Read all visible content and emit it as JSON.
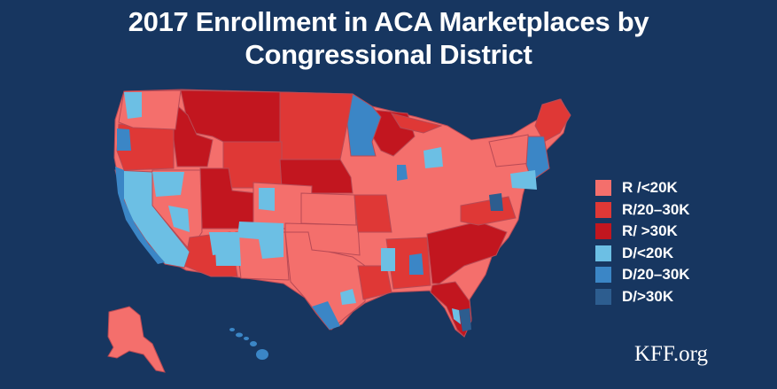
{
  "title_line1": "2017 Enrollment in ACA Marketplaces by",
  "title_line2": "Congressional District",
  "legend": [
    {
      "label": "R /<20K",
      "color": "#f46f6c"
    },
    {
      "label": "R/20–30K",
      "color": "#df3836"
    },
    {
      "label": "R/ >30K",
      "color": "#c2161f"
    },
    {
      "label": "D/<20K",
      "color": "#6cbfe4"
    },
    {
      "label": "D/20–30K",
      "color": "#3b86c6"
    },
    {
      "label": "D/>30K",
      "color": "#2d5d8f"
    }
  ],
  "brand": "KFF.org",
  "colors": {
    "background": "#173660",
    "border": "#c9616a"
  }
}
